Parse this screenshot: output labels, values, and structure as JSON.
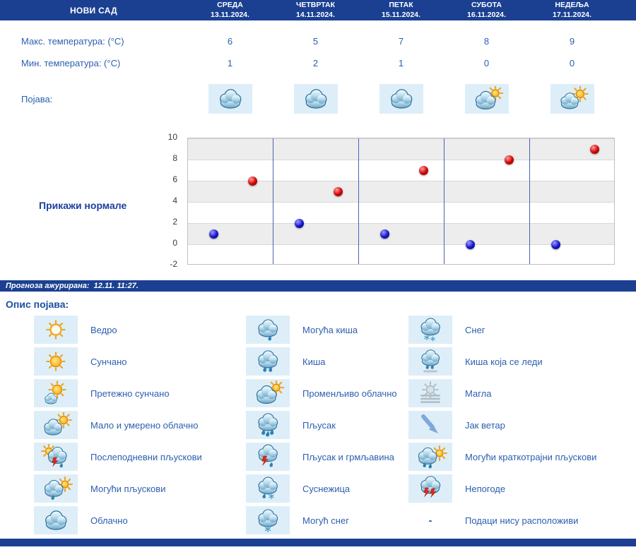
{
  "colors": {
    "bar_blue": "#1b4092",
    "text_blue": "#2b5fae",
    "icon_bg": "#ddeef8",
    "link_blue": "#1d3f9e",
    "grid_line": "#4a63ae"
  },
  "header": {
    "location": "НОВИ САД",
    "days": [
      {
        "name": "СРЕДА",
        "date": "13.11.2024."
      },
      {
        "name": "ЧЕТВРТАК",
        "date": "14.11.2024."
      },
      {
        "name": "ПЕТАК",
        "date": "15.11.2024."
      },
      {
        "name": "СУБОТА",
        "date": "16.11.2024."
      },
      {
        "name": "НЕДЕЉА",
        "date": "17.11.2024."
      }
    ]
  },
  "forecast": {
    "rows": [
      {
        "label": "Макс. температура: (°C)",
        "values": [
          6,
          5,
          7,
          8,
          9
        ]
      },
      {
        "label": "Мин. температура: (°C)",
        "values": [
          1,
          2,
          1,
          0,
          0
        ]
      }
    ],
    "phenomena_label": "Појава:",
    "phenomena_icons": [
      "cloudy",
      "cloudy",
      "cloudy",
      "variable-cloudy",
      "partly-cloudy-sun"
    ]
  },
  "chart": {
    "show_normals_label": "Прикажи нормале"
  },
  "chart_data": {
    "type": "scatter",
    "categories": [
      "13.11.2024.",
      "14.11.2024.",
      "15.11.2024.",
      "16.11.2024.",
      "17.11.2024."
    ],
    "series": [
      {
        "name": "Макс. температура (°C)",
        "color": "#cf0000",
        "color_light": "#ff9d9d",
        "color_dark": "#5e0000",
        "values": [
          6,
          5,
          7,
          8,
          9
        ]
      },
      {
        "name": "Мин. температура (°C)",
        "color": "#1414c8",
        "color_light": "#9d9dff",
        "color_dark": "#00004e",
        "values": [
          1,
          2,
          1,
          0,
          0
        ]
      }
    ],
    "ylim": [
      -2,
      10
    ],
    "ytick_step": 2,
    "xlabel": "",
    "ylabel": "",
    "grid": true,
    "legend_position": "none"
  },
  "status_bar": {
    "text": "Прогноза ажурирана:  12.11. 11:27."
  },
  "legend": {
    "title": "Опис појава:",
    "columns": [
      [
        {
          "icon": "clear",
          "label": "Ведро"
        },
        {
          "icon": "sunny",
          "label": "Сунчано"
        },
        {
          "icon": "mostly-sunny",
          "label": "Претежно сунчано"
        },
        {
          "icon": "partly-cloudy-sun",
          "label": "Мало и умерено облачно"
        },
        {
          "icon": "afternoon-showers",
          "label": "Послеподневни пљускови"
        },
        {
          "icon": "possible-showers",
          "label": "Могући пљускови"
        },
        {
          "icon": "cloudy",
          "label": "Облачно"
        }
      ],
      [
        {
          "icon": "possible-rain",
          "label": "Могућа киша"
        },
        {
          "icon": "rain",
          "label": "Киша"
        },
        {
          "icon": "variable-cloudy",
          "label": "Променљиво облачно"
        },
        {
          "icon": "shower",
          "label": "Пљусак"
        },
        {
          "icon": "shower-thunder",
          "label": "Пљусак и грмљавина"
        },
        {
          "icon": "sleet",
          "label": "Суснежица"
        },
        {
          "icon": "possible-snow",
          "label": "Могућ снег"
        }
      ],
      [
        {
          "icon": "snow",
          "label": "Снег"
        },
        {
          "icon": "freezing-rain",
          "label": "Киша која се леди"
        },
        {
          "icon": "fog",
          "label": "Магла"
        },
        {
          "icon": "strong-wind",
          "label": "Јак ветар"
        },
        {
          "icon": "short-showers",
          "label": "Могући краткотрајни пљускови"
        },
        {
          "icon": "storm",
          "label": "Непогоде"
        },
        {
          "icon": "no-data",
          "label": "Подаци нису расположиви",
          "dash": "-"
        }
      ]
    ]
  }
}
